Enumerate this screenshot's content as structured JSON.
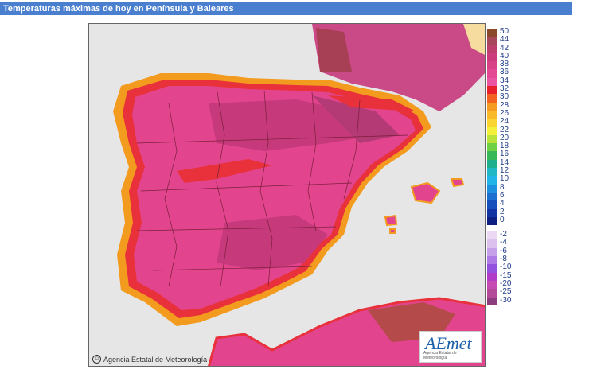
{
  "header": {
    "title": "Temperaturas máximas de hoy en Península y Baleares"
  },
  "map": {
    "credit": "Agencia Estatal de Meteorología",
    "logo": {
      "text": "AEmet",
      "subtitle": "Agencia Estatal de Meteorología"
    },
    "colors": {
      "sea": "#e6e6e6",
      "land_hot": "#e2458e",
      "land_hotter": "#c63a7c",
      "coast_orange": "#f39b1f",
      "coast_red": "#e8313a",
      "france": "#a84055"
    }
  },
  "legend": {
    "positive": [
      {
        "label": "50",
        "color": "#8a4a2a"
      },
      {
        "label": "44",
        "color": "#a6485a"
      },
      {
        "label": "42",
        "color": "#bd3f6c"
      },
      {
        "label": "40",
        "color": "#cc3c7a"
      },
      {
        "label": "38",
        "color": "#d84286"
      },
      {
        "label": "36",
        "color": "#e34a93"
      },
      {
        "label": "34",
        "color": "#ea56a2"
      },
      {
        "label": "32",
        "color": "#e8202a"
      },
      {
        "label": "30",
        "color": "#f26322"
      },
      {
        "label": "28",
        "color": "#f59a22"
      },
      {
        "label": "26",
        "color": "#f8b92a"
      },
      {
        "label": "24",
        "color": "#fad531"
      },
      {
        "label": "22",
        "color": "#f4f03a"
      },
      {
        "label": "20",
        "color": "#b9e23a"
      },
      {
        "label": "18",
        "color": "#6fcf45"
      },
      {
        "label": "16",
        "color": "#36b858"
      },
      {
        "label": "14",
        "color": "#1fae8e"
      },
      {
        "label": "12",
        "color": "#1fb8c4"
      },
      {
        "label": "10",
        "color": "#22b6e8"
      },
      {
        "label": "8",
        "color": "#1e90e0"
      },
      {
        "label": "6",
        "color": "#1a6fd0"
      },
      {
        "label": "4",
        "color": "#1550bd"
      },
      {
        "label": "2",
        "color": "#1235a3"
      },
      {
        "label": "0",
        "color": "#0d1f80"
      }
    ],
    "negative": [
      {
        "label": "-2",
        "color": "#ecd8f2"
      },
      {
        "label": "-4",
        "color": "#dcc0ee"
      },
      {
        "label": "-6",
        "color": "#c7a0ea"
      },
      {
        "label": "-8",
        "color": "#b07ae6"
      },
      {
        "label": "-10",
        "color": "#9450df"
      },
      {
        "label": "-15",
        "color": "#b03cc7"
      },
      {
        "label": "-20",
        "color": "#c54bb3"
      },
      {
        "label": "-25",
        "color": "#b34a9a"
      },
      {
        "label": "-30",
        "color": "#8d3c80"
      }
    ]
  }
}
